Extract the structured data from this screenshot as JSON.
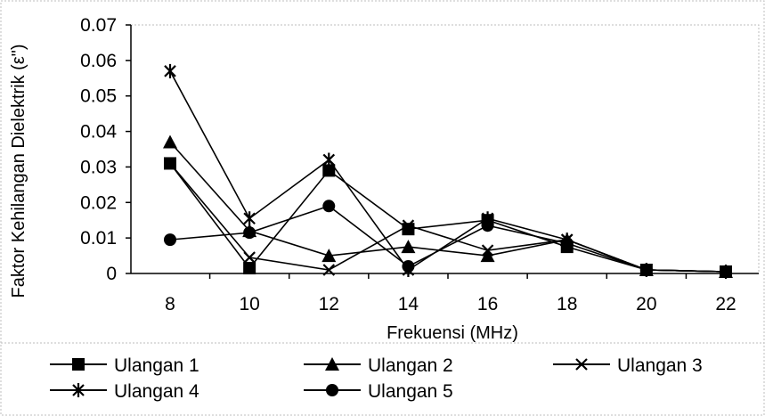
{
  "chart_data": {
    "type": "line",
    "title": "",
    "xlabel": "Frekuensi (MHz)",
    "ylabel": "Faktor Kehilangan Dielektrik (ε\")",
    "x": [
      8,
      10,
      12,
      14,
      16,
      18,
      20,
      22
    ],
    "x_tick_labels": [
      "8",
      "10",
      "12",
      "14",
      "16",
      "18",
      "20",
      "22"
    ],
    "ylim": [
      0,
      0.07
    ],
    "y_ticks": [
      0,
      0.01,
      0.02,
      0.03,
      0.04,
      0.05,
      0.06,
      0.07
    ],
    "y_tick_labels": [
      "0",
      "0.01",
      "0.02",
      "0.03",
      "0.04",
      "0.05",
      "0.06",
      "0.07"
    ],
    "grid": false,
    "legend_position": "bottom",
    "series": [
      {
        "name": "Ulangan 1",
        "marker": "square",
        "values": [
          0.031,
          0.0015,
          0.029,
          0.0125,
          0.015,
          0.0075,
          0.001,
          0.0005
        ]
      },
      {
        "name": "Ulangan 2",
        "marker": "triangle",
        "values": [
          0.037,
          0.012,
          0.005,
          0.0075,
          0.005,
          0.0095,
          0.001,
          0.0005
        ]
      },
      {
        "name": "Ulangan 3",
        "marker": "x",
        "values": [
          0.031,
          0.0045,
          0.001,
          0.0135,
          0.0065,
          0.0095,
          0.001,
          0.0005
        ]
      },
      {
        "name": "Ulangan 4",
        "marker": "star",
        "values": [
          0.057,
          0.0155,
          0.032,
          0.001,
          0.0155,
          0.0095,
          0.001,
          0.0005
        ]
      },
      {
        "name": "Ulangan 5",
        "marker": "circle",
        "values": [
          0.0095,
          0.0115,
          0.019,
          0.002,
          0.0135,
          0.0085,
          0.001,
          0.0005
        ]
      }
    ]
  }
}
